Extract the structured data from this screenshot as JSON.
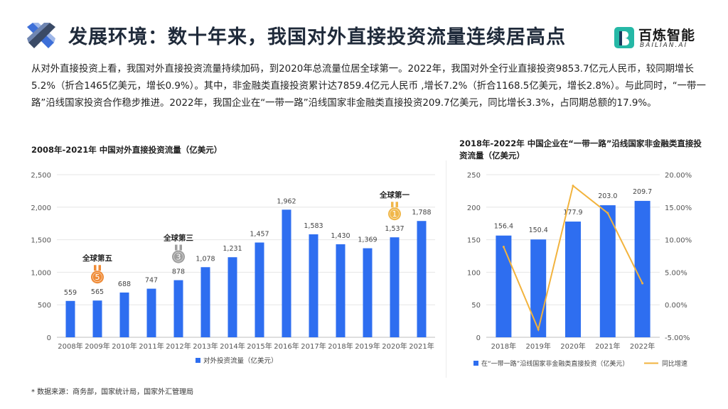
{
  "header": {
    "title": "发展环境：数十年来，我国对外直接投资流量连续居高点",
    "brand_name": "百炼智能",
    "brand_sub": "BAILIAN.AI"
  },
  "intro": "从对外直接投资上看，我国对外直接投资流量持续加码，到2020年总流量位居全球第一。2022年，我国对外全行业直接投资9853.7亿元人民币，较同期增长5.2%（折合1465亿美元，增长0.9%）。其中，非金融类直接投资累计达7859.4亿元人民币 ,增长7.2%（折合1168.5亿美元，增长2.8%）。与此同时，“一带一路”沿线国家投资合作稳步推进。2022年，我国企业在“一带一路”沿线国家非金融类直接投资209.7亿美元，同比增长3.3%，占同期总额的17.9%。",
  "footnote": "* 数据来源：商务部，国家统计局，国家外汇管理局",
  "colors": {
    "bar": "#2e6ef0",
    "line": "#f2b33d",
    "grid": "#e6e6e6",
    "gold": "#f0b74a",
    "silver": "#9e9e9e",
    "bronze": "#ef8b37"
  },
  "chart_data": [
    {
      "type": "bar",
      "title": "2008年-2021年 中国对外直接投资流量（亿美元）",
      "categories": [
        "2008年",
        "2009年",
        "2010年",
        "2011年",
        "2012年",
        "2013年",
        "2014年",
        "2015年",
        "2016年",
        "2017年",
        "2018年",
        "2019年",
        "2020年",
        "2021年"
      ],
      "series": [
        {
          "name": "对外投资流量（亿美元）",
          "values": [
            559,
            565,
            688,
            747,
            878,
            1078,
            1231,
            1457,
            1962,
            1583,
            1430,
            1369,
            1537,
            1788
          ]
        }
      ],
      "ylim": [
        0,
        2500
      ],
      "yticks": [
        0,
        500,
        1000,
        1500,
        2000,
        2500
      ],
      "legend": "bottom-center",
      "grid": true,
      "annotations": [
        {
          "category": "2009年",
          "label": "全球第五",
          "rank": "5",
          "medal": "bronze"
        },
        {
          "category": "2012年",
          "label": "全球第三",
          "rank": "3",
          "medal": "silver"
        },
        {
          "category": "2020年",
          "label": "全球第一",
          "rank": "1",
          "medal": "gold"
        }
      ]
    },
    {
      "type": "bar+line",
      "title": "2018年-2022年 中国企业在“一带一路”沿线国家非金融类直接投资流量（亿美元）",
      "categories": [
        "2018年",
        "2019年",
        "2020年",
        "2021年",
        "2022年"
      ],
      "series": [
        {
          "name": "在“一带一路”沿线国家非金融类直接投资（亿美元）",
          "type": "bar",
          "axis": "left",
          "values": [
            156.4,
            150.4,
            177.9,
            203.0,
            209.7
          ],
          "labels": [
            "156.4",
            "150.4",
            "177.9",
            "203.0",
            "209.7"
          ]
        },
        {
          "name": "同比增速",
          "type": "line",
          "axis": "right",
          "values": [
            8.9,
            -3.8,
            18.3,
            14.1,
            3.3
          ]
        }
      ],
      "ylim": [
        0,
        250
      ],
      "yticks": [
        0,
        50,
        100,
        150,
        200,
        250
      ],
      "y2lim": [
        -5,
        20
      ],
      "y2ticks": [
        "-5.00%",
        "0.00%",
        "5.00%",
        "10.00%",
        "15.00%",
        "20.00%"
      ],
      "legend": "bottom-center",
      "grid": true
    }
  ]
}
